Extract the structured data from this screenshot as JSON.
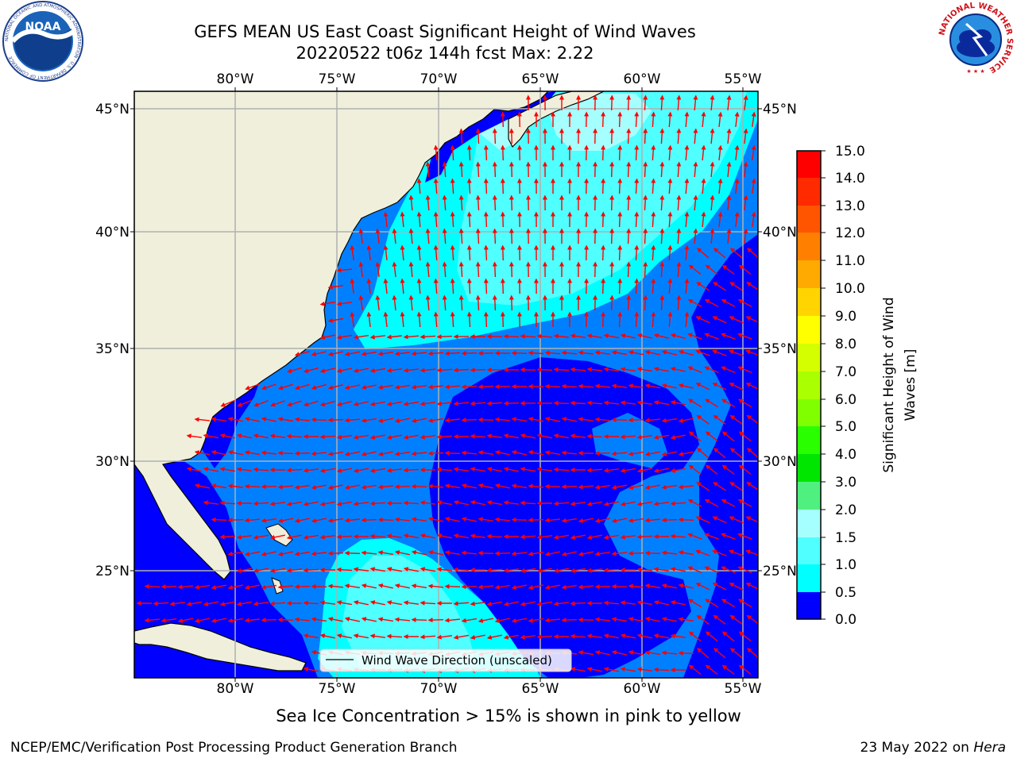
{
  "title": {
    "line1": "GEFS MEAN US East Coast Significant Height of Wind Waves",
    "line2": "20220522 t06z 144h fcst   Max: 2.22"
  },
  "logos": {
    "left": {
      "name": "noaa-logo",
      "text": "NOAA",
      "ring_text": "NATIONAL OCEANIC AND ATMOSPHERIC ADMINISTRATION · U.S. DEPARTMENT OF COMMERCE"
    },
    "right": {
      "name": "nws-logo",
      "ring_text": "NATIONAL WEATHER SERVICE"
    }
  },
  "map": {
    "lon_range": [
      -85,
      -54.3
    ],
    "lat_range": [
      20.3,
      45.8
    ],
    "lon_ticks": [
      "80°W",
      "75°W",
      "70°W",
      "65°W",
      "60°W",
      "55°W"
    ],
    "lat_ticks": [
      "45°N",
      "40°N",
      "35°N",
      "30°N",
      "25°N"
    ],
    "land_color": "#efefdc",
    "coast_color": "#000000",
    "grid_color": "#b0b0b0",
    "arrow_color": "#ff0000",
    "legend_label": "Wind Wave Direction (unscaled)"
  },
  "colorbar": {
    "label": "Significant Height of Wind Waves [m]",
    "label_line1": "Significant Height of Wind",
    "label_line2": "Waves [m]",
    "ticks": [
      "15.0",
      "14.0",
      "13.0",
      "12.0",
      "11.0",
      "10.0",
      "9.0",
      "8.0",
      "7.0",
      "6.0",
      "5.0",
      "4.0",
      "3.0",
      "2.0",
      "1.5",
      "1.0",
      "0.5",
      "0.0"
    ],
    "colors_top_to_bottom": [
      "#ff0000",
      "#ff2a00",
      "#ff5500",
      "#ff8000",
      "#ffaa00",
      "#ffd400",
      "#ffff00",
      "#d4ff00",
      "#aaff00",
      "#80ff00",
      "#2aff00",
      "#00e600",
      "#50f080",
      "#a6ffff",
      "#50ffff",
      "#00ffff",
      "#0080ff",
      "#0000ff"
    ]
  },
  "footnote": "Sea Ice Concentration > 15% is shown in pink to yellow",
  "credit": "NCEP/EMC/Verification Post Processing Product Generation Branch",
  "date_text": "23 May 2022 on",
  "date_host": "Hera"
}
